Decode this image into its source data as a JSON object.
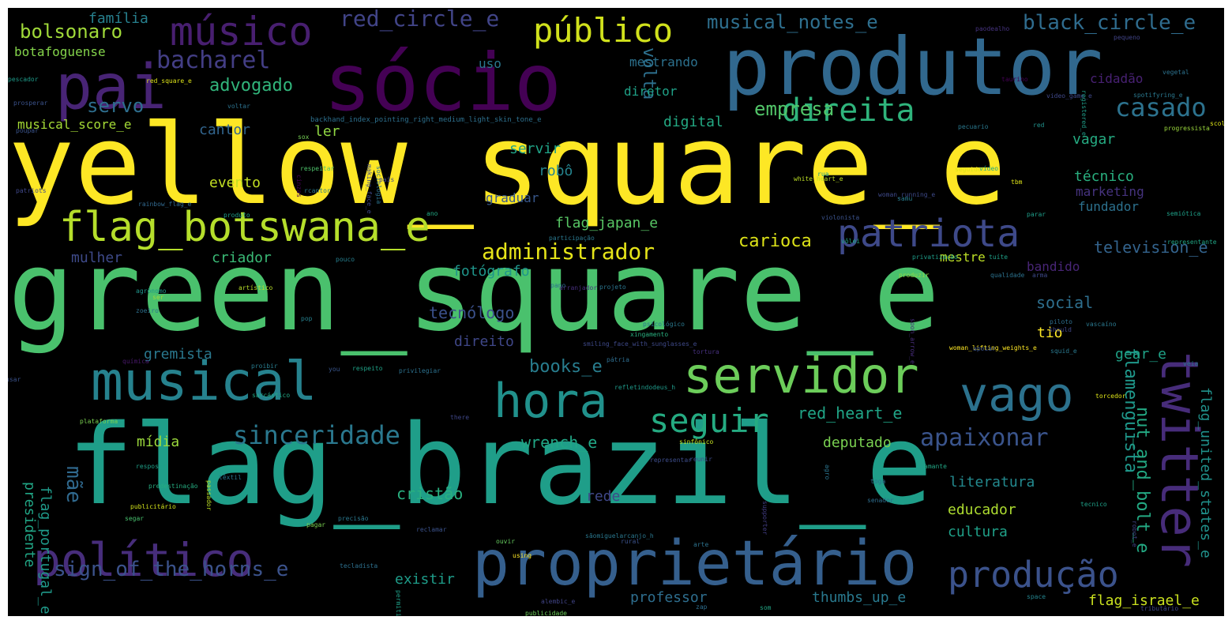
{
  "words": [
    {
      "text": "yellow_square_e",
      "color": "#fde725"
    },
    {
      "text": "green_square_e",
      "color": "#4ac16d"
    },
    {
      "text": "flag_brazil_e",
      "color": "#1f9e89"
    },
    {
      "text": "produtor",
      "color": "#31688e"
    },
    {
      "text": "sócio",
      "color": "#440154"
    },
    {
      "text": "proprietário",
      "color": "#355f8d"
    },
    {
      "text": "musical",
      "color": "#26828e"
    },
    {
      "text": "pai",
      "color": "#482475"
    },
    {
      "text": "político",
      "color": "#472d7b"
    },
    {
      "text": "servidor",
      "color": "#6ccd5a"
    },
    {
      "text": "hora",
      "color": "#21918c"
    },
    {
      "text": "vago",
      "color": "#2c728e"
    },
    {
      "text": "twitter",
      "color": "#472c7a"
    },
    {
      "text": "flag_botswana_e",
      "color": "#b5de2b"
    },
    {
      "text": "patriota",
      "color": "#3e4989"
    },
    {
      "text": "músico",
      "color": "#481f70"
    },
    {
      "text": "público",
      "color": "#d0e11c"
    },
    {
      "text": "produção",
      "color": "#3b528b"
    },
    {
      "text": "seguir",
      "color": "#25ab82"
    },
    {
      "text": "sinceridade",
      "color": "#2a788e"
    },
    {
      "text": "direita",
      "color": "#2fb47c"
    },
    {
      "text": "apaixonar",
      "color": "#3a548c"
    },
    {
      "text": "administrador",
      "color": "#e5e419"
    },
    {
      "text": "sign_of_the_horns_e",
      "color": "#3b528b"
    },
    {
      "text": "bacharel",
      "color": "#433e85"
    },
    {
      "text": "casado",
      "color": "#2c728e"
    },
    {
      "text": "red_circle_e",
      "color": "#414487"
    },
    {
      "text": "bolsonaro",
      "color": "#a0da39"
    },
    {
      "text": "musical_notes_e",
      "color": "#2e6f8e"
    },
    {
      "text": "black_circle_e",
      "color": "#2f6c8e"
    },
    {
      "text": "carioca",
      "color": "#dde318"
    },
    {
      "text": "volta",
      "color": "#2d708e"
    },
    {
      "text": "servo",
      "color": "#2e6e8e"
    },
    {
      "text": "advogado",
      "color": "#31b57b"
    },
    {
      "text": "empresa",
      "color": "#52c569"
    },
    {
      "text": "books_e",
      "color": "#287d8e"
    },
    {
      "text": "mãe",
      "color": "#30698e"
    },
    {
      "text": "flamenguista",
      "color": "#1f988b"
    },
    {
      "text": "nut_and_bolt_e",
      "color": "#23a983"
    },
    {
      "text": "television_e",
      "color": "#33638d"
    },
    {
      "text": "red_heart_e",
      "color": "#20a486"
    },
    {
      "text": "wrench_e",
      "color": "#21a685"
    },
    {
      "text": "social",
      "color": "#2e6f8e"
    },
    {
      "text": "presidente",
      "color": "#21a585"
    },
    {
      "text": "flag_portugal_e",
      "color": "#1f9a8a"
    },
    {
      "text": "cristão",
      "color": "#29af7f"
    },
    {
      "text": "literatura",
      "color": "#23898e"
    },
    {
      "text": "deputado",
      "color": "#7ad151"
    },
    {
      "text": "tecnólogo",
      "color": "#3b518b"
    },
    {
      "text": "fotógrafo",
      "color": "#1f968b"
    },
    {
      "text": "gremista",
      "color": "#2a788e"
    },
    {
      "text": "direito",
      "color": "#3f4788"
    },
    {
      "text": "mídia",
      "color": "#9bd93c"
    },
    {
      "text": "rede",
      "color": "#3f4889"
    },
    {
      "text": "educador",
      "color": "#addc30"
    },
    {
      "text": "cultura",
      "color": "#1fa088"
    },
    {
      "text": "existir",
      "color": "#1e9c89"
    },
    {
      "text": "professor",
      "color": "#2e6e8e"
    },
    {
      "text": "thumbs_up_e",
      "color": "#29798e"
    },
    {
      "text": "flag_israel_e",
      "color": "#cae11f"
    },
    {
      "text": "flag_united_states_e",
      "color": "#20928c"
    },
    {
      "text": "gear_e",
      "color": "#1fa287"
    },
    {
      "text": "tio",
      "color": "#fde725"
    },
    {
      "text": "técnico",
      "color": "#29af7f"
    },
    {
      "text": "marketing",
      "color": "#46337f"
    },
    {
      "text": "fundador",
      "color": "#2c718e"
    },
    {
      "text": "bandido",
      "color": "#482576"
    },
    {
      "text": "mestre",
      "color": "#bddf26"
    },
    {
      "text": "vagar",
      "color": "#25ab82"
    },
    {
      "text": "robô",
      "color": "#25848e"
    },
    {
      "text": "servir",
      "color": "#20a386"
    },
    {
      "text": "graduar",
      "color": "#38588c"
    },
    {
      "text": "evento",
      "color": "#c2df23"
    },
    {
      "text": "criador",
      "color": "#3aba76"
    },
    {
      "text": "mulher",
      "color": "#3e4a89"
    },
    {
      "text": "flag_japan_e",
      "color": "#58c765"
    },
    {
      "text": "digital",
      "color": "#23a983"
    },
    {
      "text": "cantor",
      "color": "#32658e"
    },
    {
      "text": "ler",
      "color": "#90d743"
    },
    {
      "text": "diretor",
      "color": "#1fa187"
    },
    {
      "text": "mestrando",
      "color": "#2c718e"
    },
    {
      "text": "cidadão",
      "color": "#482173"
    },
    {
      "text": "uso",
      "color": "#2a778e"
    },
    {
      "text": "família",
      "color": "#27808e"
    },
    {
      "text": "botafoguense",
      "color": "#84d44b"
    },
    {
      "text": "musical_score_e",
      "color": "#a5db36"
    },
    {
      "text": "backhand_index_pointing_right_medium_light_skin_tone_e",
      "color": "#2d708e"
    },
    {
      "text": "pescador",
      "color": "#1e9b8a"
    },
    {
      "text": "red_square_e",
      "color": "#dde318"
    },
    {
      "text": "prosperar",
      "color": "#3b528b"
    },
    {
      "text": "poupar",
      "color": "#3a538b"
    },
    {
      "text": "voltar",
      "color": "#2c728e"
    },
    {
      "text": "respeitar",
      "color": "#4ec36b"
    },
    {
      "text": "sox",
      "color": "#75d054"
    },
    {
      "text": "rcantor",
      "color": "#2a788e"
    },
    {
      "text": "rainbow_flag_e",
      "color": "#31688e"
    },
    {
      "text": "sociologia",
      "color": "#2c738e"
    },
    {
      "text": "país",
      "color": "#3e4989"
    },
    {
      "text": "patriots",
      "color": "#3f4788"
    },
    {
      "text": "produto",
      "color": "#1f9e89"
    },
    {
      "text": "ano",
      "color": "#22a884"
    },
    {
      "text": "participação",
      "color": "#2a788e"
    },
    {
      "text": "pouco",
      "color": "#277f8e"
    },
    {
      "text": "artístico",
      "color": "#b8de29"
    },
    {
      "text": "ser",
      "color": "#9dd93b"
    },
    {
      "text": "agrônomo",
      "color": "#1f958b"
    },
    {
      "text": "zoeiro",
      "color": "#2d708e"
    },
    {
      "text": "pop",
      "color": "#26818e"
    },
    {
      "text": "pano",
      "color": "#2e6f8e"
    },
    {
      "text": "arranjador",
      "color": "#472f7d"
    },
    {
      "text": "projeto",
      "color": "#2b758e"
    },
    {
      "text": "smiling_face_with_sunglasses_e",
      "color": "#3e4989"
    },
    {
      "text": "química",
      "color": "#48186a"
    },
    {
      "text": "usar",
      "color": "#3b528b"
    },
    {
      "text": "proibir",
      "color": "#287c8e"
    },
    {
      "text": "you",
      "color": "#39568c"
    },
    {
      "text": "respeito",
      "color": "#1fa287"
    },
    {
      "text": "privilegiar",
      "color": "#2c718e"
    },
    {
      "text": "pátria",
      "color": "#2e6d8e"
    },
    {
      "text": "refletindodeus_h",
      "color": "#1f9a8a"
    },
    {
      "text": "plataforma",
      "color": "#7ad151"
    },
    {
      "text": "sarcástico",
      "color": "#22a785"
    },
    {
      "text": "there",
      "color": "#3f4788"
    },
    {
      "text": "resposta",
      "color": "#1fa088"
    },
    {
      "text": "predestinação",
      "color": "#26ad81"
    },
    {
      "text": "passador",
      "color": "#bddf26"
    },
    {
      "text": "publicitário",
      "color": "#d2e21b"
    },
    {
      "text": "têxtil",
      "color": "#2a768e"
    },
    {
      "text": "segar",
      "color": "#48c16e"
    },
    {
      "text": "precisão",
      "color": "#2a788e"
    },
    {
      "text": "pagar",
      "color": "#7ad151"
    },
    {
      "text": "reclamar",
      "color": "#3b528b"
    },
    {
      "text": "tecladista",
      "color": "#2d708e"
    },
    {
      "text": "ouvir",
      "color": "#65cb5e"
    },
    {
      "text": "using",
      "color": "#fde725"
    },
    {
      "text": "sãomiguelarcanjo_h",
      "color": "#2a778e"
    },
    {
      "text": "rural",
      "color": "#3b518b"
    },
    {
      "text": "arte",
      "color": "#2c728e"
    },
    {
      "text": "alembic_e",
      "color": "#414487"
    },
    {
      "text": "publicidade",
      "color": "#6ccd5a"
    },
    {
      "text": "permitir",
      "color": "#1fa088"
    },
    {
      "text": "zap",
      "color": "#2e6e8e"
    },
    {
      "text": "som",
      "color": "#22a785"
    },
    {
      "text": "supporter",
      "color": "#433e85"
    },
    {
      "text": "agro",
      "color": "#2b748e"
    },
    {
      "text": "representar",
      "color": "#3d4d8a"
    },
    {
      "text": "reunir",
      "color": "#3e4c8a"
    },
    {
      "text": "sinfônico",
      "color": "#c5e021"
    },
    {
      "text": "toga",
      "color": "#2d708e"
    },
    {
      "text": "amante",
      "color": "#22a785"
    },
    {
      "text": "senador",
      "color": "#2e6e8e"
    },
    {
      "text": "tecnico",
      "color": "#1fa088"
    },
    {
      "text": "robot_e",
      "color": "#414487"
    },
    {
      "text": "space",
      "color": "#25848e"
    },
    {
      "text": "tributário",
      "color": "#3f4788"
    },
    {
      "text": "tortura",
      "color": "#46307e"
    },
    {
      "text": "woman_lifting_weights_e",
      "color": "#fde725"
    },
    {
      "text": "apoiar",
      "color": "#3b528b"
    },
    {
      "text": "squid_e",
      "color": "#2a788e"
    },
    {
      "text": "should",
      "color": "#404688"
    },
    {
      "text": "vascaíno",
      "color": "#2a788e"
    },
    {
      "text": "torcedor",
      "color": "#dde318"
    },
    {
      "text": "veia",
      "color": "#2a788e"
    },
    {
      "text": "piloto",
      "color": "#2e6e8e"
    },
    {
      "text": "soon_arrow_e",
      "color": "#472d7b"
    },
    {
      "text": "arma",
      "color": "#3e4989"
    },
    {
      "text": "qualidade",
      "color": "#2c728e"
    },
    {
      "text": "produzir",
      "color": "#90d743"
    },
    {
      "text": "tuíte",
      "color": "#1fa088"
    },
    {
      "text": "privatização",
      "color": "#1e9c89"
    },
    {
      "text": "vôlei",
      "color": "#22a785"
    },
    {
      "text": "xingamento",
      "color": "#29af7f"
    },
    {
      "text": "violonista",
      "color": "#3b528b"
    },
    {
      "text": "woman_running_e",
      "color": "#3e4989"
    },
    {
      "text": "psicológico",
      "color": "#2a788e"
    },
    {
      "text": "samu",
      "color": "#287d8e"
    },
    {
      "text": "parar",
      "color": "#1f9e89"
    },
    {
      "text": "representante",
      "color": "#21a685"
    },
    {
      "text": "semiótica",
      "color": "#1fa088"
    },
    {
      "text": "tbm",
      "color": "#dde318"
    },
    {
      "text": "seguidor",
      "color": "#dde318"
    },
    {
      "text": "vídeo",
      "color": "#22a785"
    },
    {
      "text": "rua",
      "color": "#1fa188"
    },
    {
      "text": "white_heart_e",
      "color": "#bddf26"
    },
    {
      "text": "pecuario",
      "color": "#2a788e"
    },
    {
      "text": "red",
      "color": "#21918c"
    },
    {
      "text": "progressista",
      "color": "#9bd93c"
    },
    {
      "text": "scolarismo",
      "color": "#dde318"
    },
    {
      "text": "vegetal",
      "color": "#2c728e"
    },
    {
      "text": "video_game_e",
      "color": "#3f4889"
    },
    {
      "text": "registered_e",
      "color": "#1f9e89"
    },
    {
      "text": "spotifyring_e",
      "color": "#2a788e"
    },
    {
      "text": "taurino",
      "color": "#440154"
    },
    {
      "text": "pequeno",
      "color": "#414487"
    },
    {
      "text": "paodealho",
      "color": "#46337f"
    },
    {
      "text": "making_face_e",
      "color": "#3e4989"
    },
    {
      "text": "cinzas",
      "color": "#440154"
    }
  ]
}
